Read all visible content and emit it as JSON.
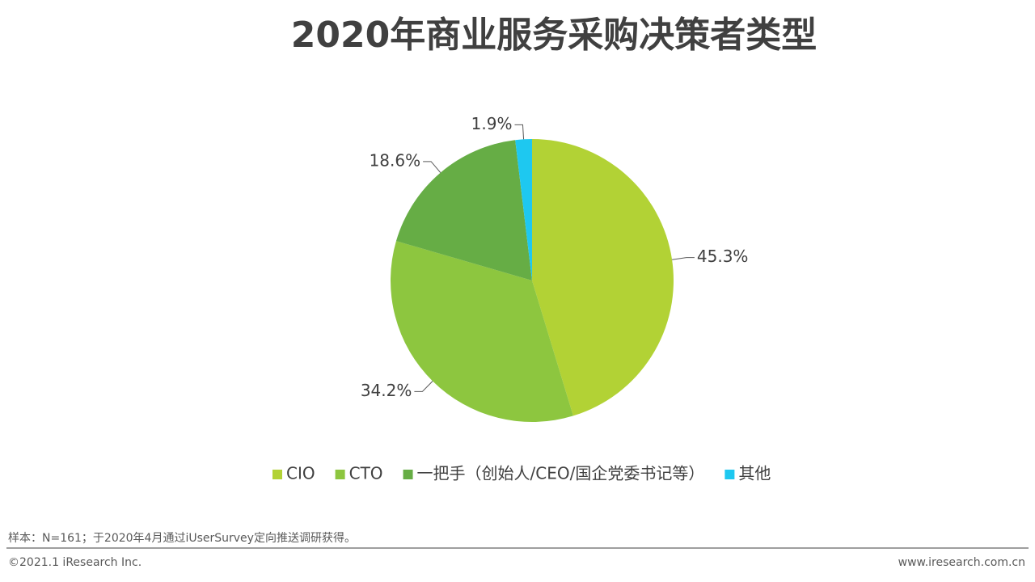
{
  "chart_data": {
    "type": "pie",
    "title": "2020年商业服务采购决策者类型",
    "categories": [
      "CIO",
      "CTO",
      "一把手（创始人/CEO/国企党委书记等）",
      "其他"
    ],
    "values": [
      45.3,
      34.2,
      18.6,
      1.9
    ],
    "value_labels": [
      "45.3%",
      "34.2%",
      "18.6%",
      "1.9%"
    ],
    "colors": [
      "#b2d235",
      "#8dc63f",
      "#66ad45",
      "#1ec8f0"
    ],
    "legend": "bottom"
  },
  "footer": {
    "note": "样本：N=161；于2020年4月通过iUserSurvey定向推送调研获得。",
    "copyright": "©2021.1 iResearch Inc.",
    "website": "www.iresearch.com.cn"
  }
}
